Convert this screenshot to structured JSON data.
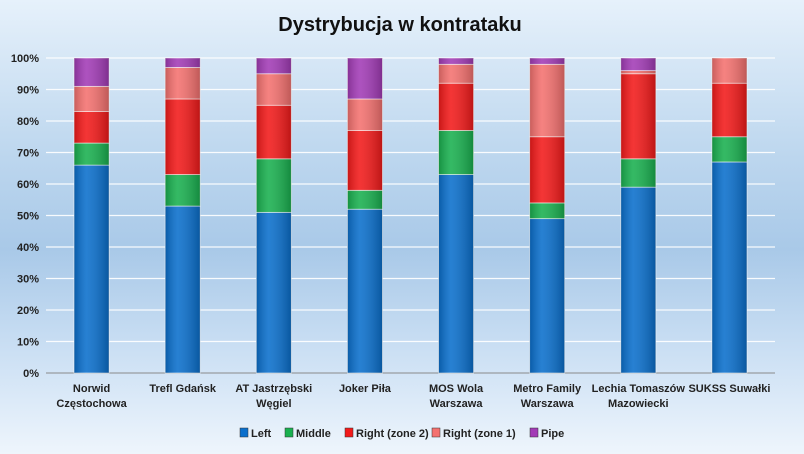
{
  "chart_data": {
    "type": "bar",
    "stacked": true,
    "percent": true,
    "title": "Dystrybucja w kontrataku",
    "xlabel": "",
    "ylabel": "",
    "ylim": [
      0,
      100
    ],
    "yticks": [
      "0%",
      "10%",
      "20%",
      "30%",
      "40%",
      "50%",
      "60%",
      "70%",
      "80%",
      "90%",
      "100%"
    ],
    "grid": true,
    "legend_position": "bottom",
    "categories": [
      [
        "Norwid",
        "Częstochowa"
      ],
      [
        "Trefl Gdańsk"
      ],
      [
        "AT Jastrzębski",
        "Węgiel"
      ],
      [
        "Joker Piła"
      ],
      [
        "MOS Wola",
        "Warszawa"
      ],
      [
        "Metro Family",
        "Warszawa"
      ],
      [
        "Lechia Tomaszów",
        "Mazowiecki"
      ],
      [
        "SUKSS Suwałki"
      ]
    ],
    "series": [
      {
        "name": "Left",
        "color": "#0a6fcc",
        "values": [
          66,
          53,
          51,
          52,
          63,
          49,
          59,
          67
        ]
      },
      {
        "name": "Middle",
        "color": "#19b04f",
        "values": [
          7,
          10,
          17,
          6,
          14,
          5,
          9,
          8
        ]
      },
      {
        "name": "Right (zone 2)",
        "color": "#f21a1a",
        "values": [
          10,
          24,
          17,
          19,
          15,
          21,
          27,
          17
        ]
      },
      {
        "name": "Right (zone 1)",
        "color": "#f4716f",
        "values": [
          8,
          10,
          10,
          10,
          6,
          23,
          1,
          8
        ]
      },
      {
        "name": "Pipe",
        "color": "#a23bb6",
        "values": [
          9,
          3,
          5,
          13,
          2,
          2,
          4,
          0
        ]
      }
    ]
  }
}
